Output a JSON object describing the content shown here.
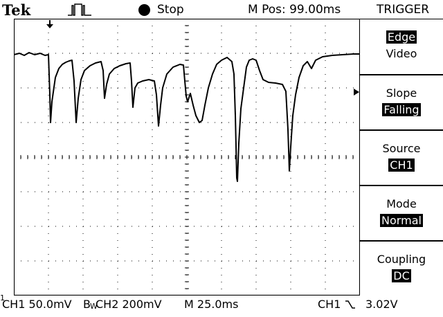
{
  "header": {
    "brand": "Tek",
    "trigger_status_icon": "trigger-pulse-icon",
    "run_state_icon": "stop-dot-icon",
    "run_state": "Stop",
    "m_pos": "M Pos: 99.00ms",
    "menu_title": "TRIGGER"
  },
  "menu": {
    "items": [
      {
        "line1": "Edge",
        "line1_highlight": true,
        "line2": "Video",
        "line2_highlight": false
      },
      {
        "line1": "Slope",
        "line1_highlight": false,
        "line2": "Falling",
        "line2_highlight": true
      },
      {
        "line1": "Source",
        "line1_highlight": false,
        "line2": "CH1",
        "line2_highlight": true
      },
      {
        "line1": "Mode",
        "line1_highlight": false,
        "line2": "Normal",
        "line2_highlight": true
      },
      {
        "line1": "Coupling",
        "line1_highlight": false,
        "line2": "DC",
        "line2_highlight": true
      }
    ]
  },
  "footer": {
    "ch1_marker": "1",
    "ch1_scale": "CH1  50.0mV",
    "bw_mark": "B",
    "bw_sub": "W",
    "ch2_scale": "CH2  200mV",
    "timebase": "M 25.0ms",
    "trigger_source": "CH1",
    "trigger_slope_icon": "falling-slope-icon",
    "trigger_level": "3.02V"
  },
  "colors": {
    "background": "#ffffff",
    "trace": "#000000",
    "grid": "#000000"
  }
}
